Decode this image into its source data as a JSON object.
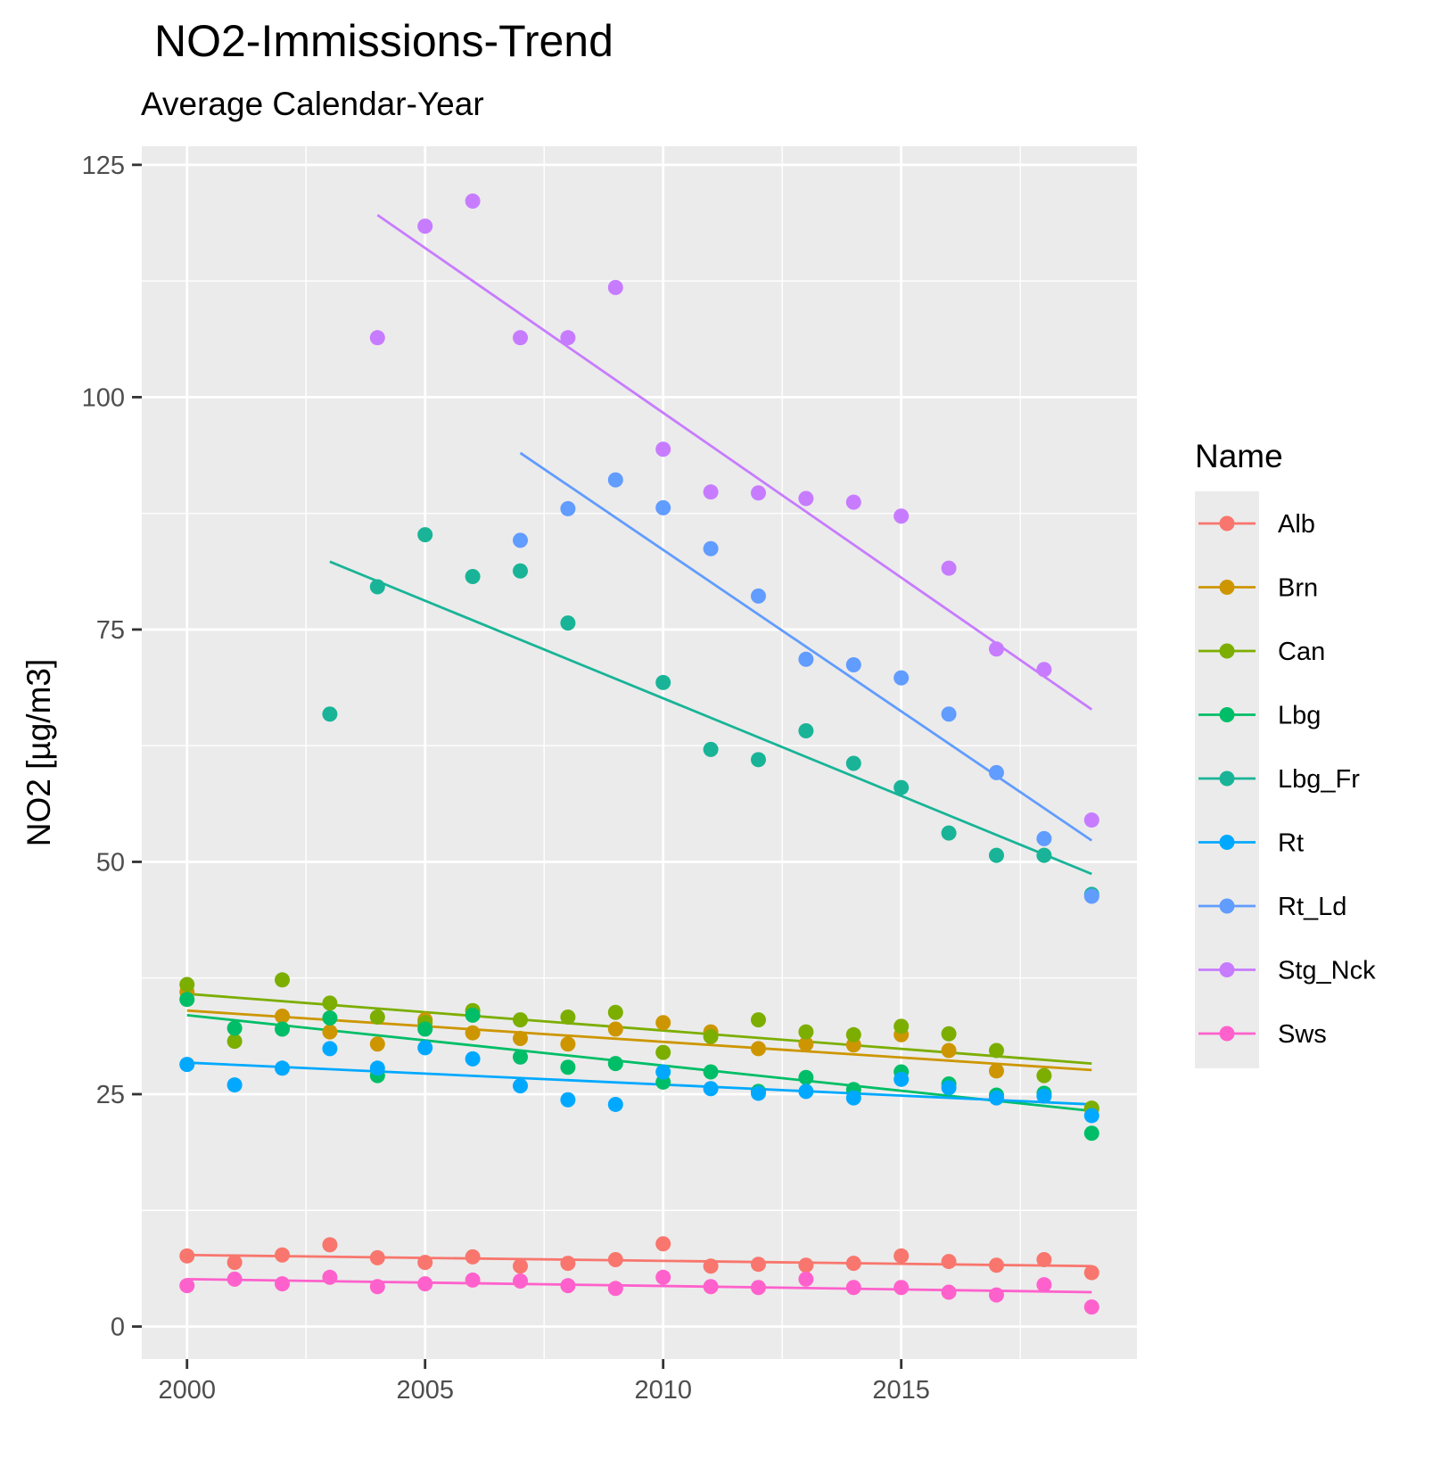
{
  "chart_data": {
    "type": "scatter",
    "title": "NO2-Immissions-Trend",
    "subtitle": "Average Calendar-Year",
    "xlabel": "",
    "ylabel": "NO2 [µg/m3]",
    "xlim": [
      1999.05,
      2019.95
    ],
    "ylim": [
      -3.5,
      127
    ],
    "x_ticks": [
      2000,
      2005,
      2010,
      2015
    ],
    "x_tick_labels": [
      "2000",
      "2005",
      "2010",
      "2015"
    ],
    "y_ticks": [
      0,
      25,
      50,
      75,
      100,
      125
    ],
    "y_tick_labels": [
      "0",
      "25",
      "50",
      "75",
      "100",
      "125"
    ],
    "grid": true,
    "legend": {
      "title": "Name",
      "position": "right"
    },
    "series": [
      {
        "name": "Alb",
        "color": "#F8766D",
        "points": [
          [
            2000,
            7.6
          ],
          [
            2001,
            6.9
          ],
          [
            2002,
            7.7
          ],
          [
            2003,
            8.8
          ],
          [
            2004,
            7.4
          ],
          [
            2005,
            6.9
          ],
          [
            2006,
            7.5
          ],
          [
            2007,
            6.5
          ],
          [
            2008,
            6.8
          ],
          [
            2009,
            7.2
          ],
          [
            2010,
            8.9
          ],
          [
            2011,
            6.5
          ],
          [
            2012,
            6.7
          ],
          [
            2013,
            6.6
          ],
          [
            2014,
            6.8
          ],
          [
            2015,
            7.6
          ],
          [
            2016,
            7.0
          ],
          [
            2017,
            6.6
          ],
          [
            2018,
            7.2
          ],
          [
            2019,
            5.8
          ]
        ],
        "trend": [
          [
            2000,
            7.7
          ],
          [
            2019,
            6.5
          ]
        ]
      },
      {
        "name": "Brn",
        "color": "#CD9600",
        "points": [
          [
            2000,
            36.0
          ],
          [
            2002,
            33.4
          ],
          [
            2003,
            31.7
          ],
          [
            2004,
            30.4
          ],
          [
            2005,
            33.0
          ],
          [
            2006,
            31.6
          ],
          [
            2007,
            31.0
          ],
          [
            2008,
            30.4
          ],
          [
            2009,
            32.0
          ],
          [
            2010,
            32.7
          ],
          [
            2011,
            31.7
          ],
          [
            2012,
            29.9
          ],
          [
            2013,
            30.4
          ],
          [
            2014,
            30.3
          ],
          [
            2015,
            31.4
          ],
          [
            2016,
            29.7
          ],
          [
            2017,
            27.5
          ],
          [
            2019,
            23.4
          ]
        ],
        "trend": [
          [
            2000,
            34.0
          ],
          [
            2019,
            27.6
          ]
        ]
      },
      {
        "name": "Can",
        "color": "#7CAE00",
        "points": [
          [
            2000,
            36.8
          ],
          [
            2001,
            30.7
          ],
          [
            2002,
            37.3
          ],
          [
            2003,
            34.8
          ],
          [
            2004,
            33.3
          ],
          [
            2005,
            32.7
          ],
          [
            2006,
            34.0
          ],
          [
            2007,
            33.0
          ],
          [
            2008,
            33.3
          ],
          [
            2009,
            33.8
          ],
          [
            2010,
            29.5
          ],
          [
            2011,
            31.2
          ],
          [
            2012,
            33.0
          ],
          [
            2013,
            31.7
          ],
          [
            2014,
            31.4
          ],
          [
            2015,
            32.3
          ],
          [
            2016,
            31.5
          ],
          [
            2017,
            29.7
          ],
          [
            2018,
            27.0
          ],
          [
            2019,
            23.5
          ]
        ],
        "trend": [
          [
            2000,
            35.8
          ],
          [
            2019,
            28.3
          ]
        ]
      },
      {
        "name": "Lbg",
        "color": "#00BE67",
        "points": [
          [
            2000,
            35.2
          ],
          [
            2001,
            32.1
          ],
          [
            2002,
            32.0
          ],
          [
            2003,
            33.2
          ],
          [
            2004,
            27.0
          ],
          [
            2005,
            32.0
          ],
          [
            2006,
            33.5
          ],
          [
            2007,
            29.0
          ],
          [
            2008,
            27.9
          ],
          [
            2009,
            28.3
          ],
          [
            2010,
            26.3
          ],
          [
            2011,
            27.4
          ],
          [
            2012,
            25.3
          ],
          [
            2013,
            26.8
          ],
          [
            2014,
            25.5
          ],
          [
            2015,
            27.4
          ],
          [
            2016,
            26.1
          ],
          [
            2017,
            24.9
          ],
          [
            2018,
            25.1
          ],
          [
            2019,
            20.8
          ]
        ],
        "trend": [
          [
            2000,
            33.5
          ],
          [
            2019,
            23.2
          ]
        ]
      },
      {
        "name": "Lbg_Fr",
        "color": "#00BFC4",
        "swatch": "#19B497",
        "points": [
          [
            2003,
            65.9
          ],
          [
            2004,
            79.6
          ],
          [
            2005,
            85.2
          ],
          [
            2006,
            80.7
          ],
          [
            2007,
            81.3
          ],
          [
            2008,
            75.7
          ],
          [
            2010,
            69.3
          ],
          [
            2011,
            62.1
          ],
          [
            2012,
            61.0
          ],
          [
            2013,
            64.1
          ],
          [
            2014,
            60.6
          ],
          [
            2015,
            58.0
          ],
          [
            2016,
            53.1
          ],
          [
            2017,
            50.7
          ],
          [
            2018,
            50.7
          ],
          [
            2019,
            46.5
          ]
        ],
        "trend": [
          [
            2003,
            82.3
          ],
          [
            2019,
            48.7
          ]
        ]
      },
      {
        "name": "Rt",
        "color": "#00A9FF",
        "points": [
          [
            2000,
            28.2
          ],
          [
            2001,
            26.0
          ],
          [
            2002,
            27.8
          ],
          [
            2003,
            29.9
          ],
          [
            2004,
            27.8
          ],
          [
            2005,
            30.0
          ],
          [
            2006,
            28.8
          ],
          [
            2007,
            25.9
          ],
          [
            2008,
            24.4
          ],
          [
            2009,
            23.9
          ],
          [
            2010,
            27.4
          ],
          [
            2011,
            25.6
          ],
          [
            2012,
            25.1
          ],
          [
            2013,
            25.3
          ],
          [
            2014,
            24.6
          ],
          [
            2015,
            26.6
          ],
          [
            2016,
            25.7
          ],
          [
            2017,
            24.6
          ],
          [
            2018,
            24.8
          ],
          [
            2019,
            22.7
          ]
        ],
        "trend": [
          [
            2000,
            28.4
          ],
          [
            2019,
            23.9
          ]
        ]
      },
      {
        "name": "Rt_Ld",
        "color": "#619CFF",
        "points": [
          [
            2007,
            84.6
          ],
          [
            2008,
            88.0
          ],
          [
            2009,
            91.1
          ],
          [
            2010,
            88.1
          ],
          [
            2011,
            83.7
          ],
          [
            2012,
            78.6
          ],
          [
            2013,
            71.8
          ],
          [
            2014,
            71.2
          ],
          [
            2015,
            69.8
          ],
          [
            2016,
            65.9
          ],
          [
            2017,
            59.6
          ],
          [
            2018,
            52.5
          ],
          [
            2019,
            46.3
          ]
        ],
        "trend": [
          [
            2007,
            94.0
          ],
          [
            2019,
            52.3
          ]
        ]
      },
      {
        "name": "Stg_Nck",
        "color": "#C77CFF",
        "points": [
          [
            2004,
            106.4
          ],
          [
            2005,
            118.4
          ],
          [
            2006,
            121.1
          ],
          [
            2007,
            106.4
          ],
          [
            2008,
            106.4
          ],
          [
            2009,
            111.8
          ],
          [
            2010,
            94.4
          ],
          [
            2011,
            89.8
          ],
          [
            2012,
            89.7
          ],
          [
            2013,
            89.1
          ],
          [
            2014,
            88.7
          ],
          [
            2015,
            87.2
          ],
          [
            2016,
            81.6
          ],
          [
            2017,
            72.9
          ],
          [
            2018,
            70.7
          ],
          [
            2019,
            54.5
          ]
        ],
        "trend": [
          [
            2004,
            119.6
          ],
          [
            2019,
            66.4
          ]
        ]
      },
      {
        "name": "Sws",
        "color": "#FF61CC",
        "points": [
          [
            2000,
            4.4
          ],
          [
            2001,
            5.1
          ],
          [
            2002,
            4.6
          ],
          [
            2003,
            5.3
          ],
          [
            2004,
            4.3
          ],
          [
            2005,
            4.6
          ],
          [
            2006,
            5.0
          ],
          [
            2007,
            4.9
          ],
          [
            2008,
            4.4
          ],
          [
            2009,
            4.1
          ],
          [
            2010,
            5.3
          ],
          [
            2011,
            4.3
          ],
          [
            2012,
            4.2
          ],
          [
            2013,
            5.1
          ],
          [
            2014,
            4.2
          ],
          [
            2015,
            4.2
          ],
          [
            2016,
            3.7
          ],
          [
            2017,
            3.4
          ],
          [
            2018,
            4.5
          ],
          [
            2019,
            2.1
          ]
        ],
        "trend": [
          [
            2000,
            5.1
          ],
          [
            2019,
            3.7
          ]
        ]
      }
    ]
  }
}
